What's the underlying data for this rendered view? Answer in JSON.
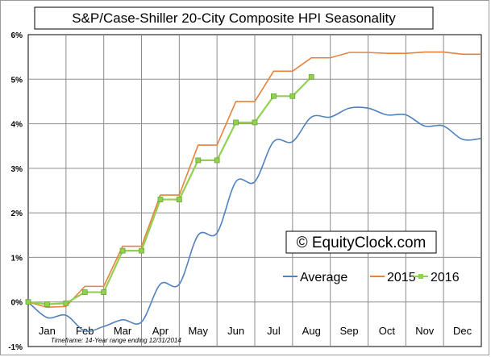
{
  "chart_data": {
    "type": "line",
    "title": "S&P/Case-Shiller 20-City Composite HPI Seasonality",
    "xlabel": "",
    "ylabel": "",
    "categories": [
      "Jan",
      "Feb",
      "Mar",
      "Apr",
      "May",
      "Jun",
      "Jul",
      "Aug",
      "Sep",
      "Oct",
      "Nov",
      "Dec"
    ],
    "y_ticks": [
      "6%",
      "5%",
      "4%",
      "3%",
      "2%",
      "1%",
      "0%",
      "-1%"
    ],
    "ylim": [
      -1,
      6
    ],
    "xlim": [
      0,
      12
    ],
    "grid": true,
    "legend_position": "bottom-right",
    "watermark": "© EquityClock.com",
    "timeframe_note": "Timeframe: 14-Year range ending 12/31/2014",
    "series": [
      {
        "name": "Average",
        "color": "#4f81bd",
        "smooth": true,
        "markers": false,
        "x": [
          0,
          0.5,
          1,
          1.5,
          2,
          2.5,
          3,
          3.5,
          4,
          4.5,
          5,
          5.5,
          6,
          6.5,
          7,
          7.5,
          8,
          8.5,
          9,
          9.5,
          10,
          10.5,
          11,
          11.5,
          12
        ],
        "values": [
          0,
          -0.35,
          -0.3,
          -0.65,
          -0.55,
          -0.4,
          -0.45,
          0.4,
          0.4,
          1.5,
          1.55,
          2.7,
          2.7,
          3.6,
          3.6,
          4.15,
          4.15,
          4.35,
          4.35,
          4.2,
          4.2,
          3.95,
          3.95,
          3.65,
          3.67
        ]
      },
      {
        "name": "2015",
        "color": "#e8823b",
        "smooth": false,
        "markers": false,
        "x": [
          0,
          0.5,
          1,
          1.5,
          2,
          2.5,
          3,
          3.5,
          4,
          4.5,
          5,
          5.5,
          6,
          6.5,
          7,
          7.5,
          8,
          8.5,
          9,
          9.5,
          10,
          10.5,
          11,
          11.5,
          12
        ],
        "values": [
          0,
          -0.12,
          -0.1,
          0.35,
          0.35,
          1.25,
          1.25,
          2.4,
          2.4,
          3.52,
          3.52,
          4.5,
          4.5,
          5.18,
          5.18,
          5.48,
          5.48,
          5.6,
          5.6,
          5.58,
          5.58,
          5.61,
          5.61,
          5.56,
          5.56
        ]
      },
      {
        "name": "2016",
        "color": "#92d050",
        "smooth": false,
        "markers": true,
        "x": [
          0,
          0.5,
          1,
          1.5,
          2,
          2.5,
          3,
          3.5,
          4,
          4.5,
          5,
          5.5,
          6,
          6.5,
          7,
          7.5
        ],
        "values": [
          0,
          -0.05,
          -0.03,
          0.22,
          0.22,
          1.15,
          1.15,
          2.3,
          2.3,
          3.18,
          3.18,
          4.03,
          4.03,
          4.62,
          4.62,
          5.05
        ]
      }
    ]
  }
}
